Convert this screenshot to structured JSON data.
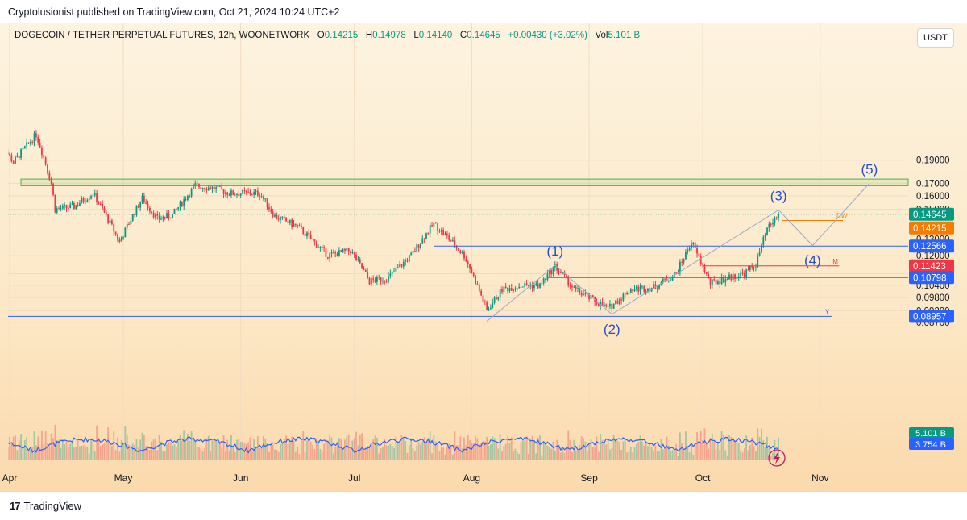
{
  "header": {
    "published": "Cryptolusionist published on TradingView.com, Oct 21, 2024 10:24 UTC+2"
  },
  "legend": {
    "symbol": "DOGECOIN / TETHER PERPETUAL FUTURES, 12h, WOONETWORK",
    "o_label": "O",
    "o_value": "0.14215",
    "h_label": "H",
    "h_value": "0.14978",
    "l_label": "L",
    "l_value": "0.14140",
    "c_label": "C",
    "c_value": "0.14645",
    "change": "+0.00430 (+3.02%)",
    "vol_label": "Vol",
    "vol_value": "5.101 B"
  },
  "currency_button": "USDT",
  "footer": {
    "brand": "TradingView"
  },
  "colors": {
    "up": "#089981",
    "down": "#f23645",
    "line_blue": "#2962ff",
    "zone_green": "#4caf50",
    "label_green": "#089981",
    "label_orange": "#f57c00",
    "label_red": "#f23645",
    "label_blue": "#2962ff",
    "wave_blue": "#2a4fc9",
    "vol_line": "#2962ff"
  },
  "chart_data": {
    "type": "candlestick",
    "timeframe": "12h",
    "x_ticks": [
      "Apr",
      "May",
      "Jun",
      "Jul",
      "Aug",
      "Sep",
      "Oct",
      "Nov"
    ],
    "y_ticks": [
      0.19,
      0.17,
      0.16,
      0.15,
      0.13,
      0.12,
      0.11,
      0.104,
      0.098,
      0.092,
      0.087
    ],
    "y_tick_labels": [
      "0.19000",
      "0.17000",
      "0.16000",
      "0.15000",
      "0.13000",
      "0.12000",
      "0.11000",
      "0.10400",
      "0.09800",
      "0.09200",
      "0.08700"
    ],
    "series": [
      {
        "date": "2024-03-29",
        "price": 0.21
      },
      {
        "date": "2024-04-02",
        "price": 0.188
      },
      {
        "date": "2024-04-08",
        "price": 0.215
      },
      {
        "date": "2024-04-12",
        "price": 0.17
      },
      {
        "date": "2024-04-13",
        "price": 0.15
      },
      {
        "date": "2024-04-18",
        "price": 0.152
      },
      {
        "date": "2024-04-23",
        "price": 0.162
      },
      {
        "date": "2024-04-30",
        "price": 0.128
      },
      {
        "date": "2024-05-06",
        "price": 0.158
      },
      {
        "date": "2024-05-10",
        "price": 0.143
      },
      {
        "date": "2024-05-14",
        "price": 0.146
      },
      {
        "date": "2024-05-20",
        "price": 0.168
      },
      {
        "date": "2024-05-25",
        "price": 0.166
      },
      {
        "date": "2024-05-29",
        "price": 0.162
      },
      {
        "date": "2024-06-06",
        "price": 0.162
      },
      {
        "date": "2024-06-10",
        "price": 0.145
      },
      {
        "date": "2024-06-16",
        "price": 0.138
      },
      {
        "date": "2024-06-24",
        "price": 0.12
      },
      {
        "date": "2024-06-30",
        "price": 0.123
      },
      {
        "date": "2024-07-05",
        "price": 0.106
      },
      {
        "date": "2024-07-10",
        "price": 0.108
      },
      {
        "date": "2024-07-16",
        "price": 0.12
      },
      {
        "date": "2024-07-22",
        "price": 0.14
      },
      {
        "date": "2024-07-26",
        "price": 0.13
      },
      {
        "date": "2024-07-30",
        "price": 0.12
      },
      {
        "date": "2024-08-05",
        "price": 0.092
      },
      {
        "date": "2024-08-09",
        "price": 0.102
      },
      {
        "date": "2024-08-14",
        "price": 0.104
      },
      {
        "date": "2024-08-19",
        "price": 0.104
      },
      {
        "date": "2024-08-23",
        "price": 0.114
      },
      {
        "date": "2024-08-28",
        "price": 0.102
      },
      {
        "date": "2024-09-02",
        "price": 0.097
      },
      {
        "date": "2024-09-06",
        "price": 0.093
      },
      {
        "date": "2024-09-12",
        "price": 0.102
      },
      {
        "date": "2024-09-18",
        "price": 0.103
      },
      {
        "date": "2024-09-24",
        "price": 0.11
      },
      {
        "date": "2024-09-28",
        "price": 0.128
      },
      {
        "date": "2024-10-01",
        "price": 0.114
      },
      {
        "date": "2024-10-03",
        "price": 0.105
      },
      {
        "date": "2024-10-08",
        "price": 0.108
      },
      {
        "date": "2024-10-12",
        "price": 0.11
      },
      {
        "date": "2024-10-15",
        "price": 0.115
      },
      {
        "date": "2024-10-18",
        "price": 0.136
      },
      {
        "date": "2024-10-21",
        "price": 0.14645
      }
    ],
    "horizontal_levels": [
      {
        "price": 0.12566,
        "label": "0.12566",
        "color": "#2962ff"
      },
      {
        "price": 0.11423,
        "label": "0.11423",
        "color": "#f23645",
        "tag": "M"
      },
      {
        "price": 0.10798,
        "label": "0.10798",
        "color": "#2962ff"
      },
      {
        "price": 0.08957,
        "label": "0.08957",
        "color": "#2962ff",
        "tag": "Y"
      },
      {
        "price": 0.14215,
        "label": "0.14215",
        "color": "#f57c00",
        "tag": "DW"
      }
    ],
    "last_price": {
      "price": 0.14645,
      "label": "0.14645"
    },
    "resistance_zone": {
      "top": 0.1735,
      "bottom": 0.168
    },
    "elliott_waves": [
      {
        "label": "(1)",
        "date": "2024-08-23",
        "price": 0.1145
      },
      {
        "label": "(2)",
        "date": "2024-09-07",
        "price": 0.0905
      },
      {
        "label": "(3)",
        "date": "2024-10-21",
        "price": 0.1495
      },
      {
        "label": "(4)",
        "date": "2024-10-30",
        "price": 0.126
      },
      {
        "label": "(5)",
        "date": "2024-11-14",
        "price": 0.17
      }
    ],
    "volume": {
      "last_label": "5.101 B",
      "ma_label": "3.754 B"
    }
  }
}
